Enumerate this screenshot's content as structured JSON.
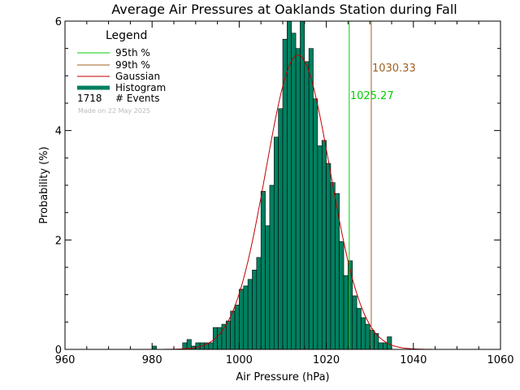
{
  "chart_data": {
    "type": "bar",
    "title": "Average Air Pressures at Oaklands Station during Fall",
    "xlabel": "Air Pressure (hPa)",
    "ylabel": "Probability (%)",
    "xlim": [
      960,
      1060
    ],
    "ylim": [
      0,
      6
    ],
    "xticks": [
      "960",
      "980",
      "1000",
      "1020",
      "1040",
      "1060"
    ],
    "yticks": [
      "0",
      "2",
      "4",
      "6"
    ],
    "bin_width": 1,
    "histogram": {
      "name": "Histogram",
      "color": "#008060",
      "x": [
        980,
        981,
        982,
        983,
        984,
        985,
        986,
        987,
        988,
        989,
        990,
        991,
        992,
        993,
        994,
        995,
        996,
        997,
        998,
        999,
        1000,
        1001,
        1002,
        1003,
        1004,
        1005,
        1006,
        1007,
        1008,
        1009,
        1010,
        1011,
        1012,
        1013,
        1014,
        1015,
        1016,
        1017,
        1018,
        1019,
        1020,
        1021,
        1022,
        1023,
        1024,
        1025,
        1026,
        1027,
        1028,
        1029,
        1030,
        1031,
        1032,
        1033,
        1034
      ],
      "values": [
        0.06,
        0,
        0,
        0,
        0,
        0,
        0,
        0.12,
        0.18,
        0.06,
        0.12,
        0.12,
        0.12,
        0.12,
        0.4,
        0.4,
        0.46,
        0.52,
        0.7,
        0.81,
        1.1,
        1.16,
        1.28,
        1.45,
        1.68,
        2.89,
        2.26,
        3.0,
        3.88,
        4.4,
        5.67,
        6.1,
        5.78,
        5.5,
        6.1,
        5.26,
        5.5,
        4.58,
        3.72,
        3.82,
        3.4,
        3.05,
        2.85,
        1.97,
        1.35,
        1.62,
        0.98,
        0.75,
        0.58,
        0.46,
        0.35,
        0.29,
        0.12,
        0.12,
        0.23
      ]
    },
    "gaussian": {
      "name": "Gaussian",
      "color": "#c00000",
      "mean": 1013.5,
      "sigma": 7.4,
      "peak": 5.38
    },
    "percentiles": [
      {
        "name": "95th %",
        "value": 1025.27,
        "label": "1025.27",
        "color": "#00d000"
      },
      {
        "name": "99th %",
        "value": 1030.33,
        "label": "1030.33",
        "color": "#a06020"
      }
    ],
    "legend": {
      "title": "Legend",
      "position": "top-left",
      "entries": [
        {
          "label": "95th %",
          "color": "#00d000",
          "style": "line"
        },
        {
          "label": "99th %",
          "color": "#a06020",
          "style": "line"
        },
        {
          "label": "Gaussian",
          "color": "#c00000",
          "style": "line"
        },
        {
          "label": "Histogram",
          "color": "#008060",
          "style": "thick"
        }
      ],
      "events_count": "1718",
      "events_label": "# Events",
      "made_on": "Made on 22 May 2025"
    }
  }
}
